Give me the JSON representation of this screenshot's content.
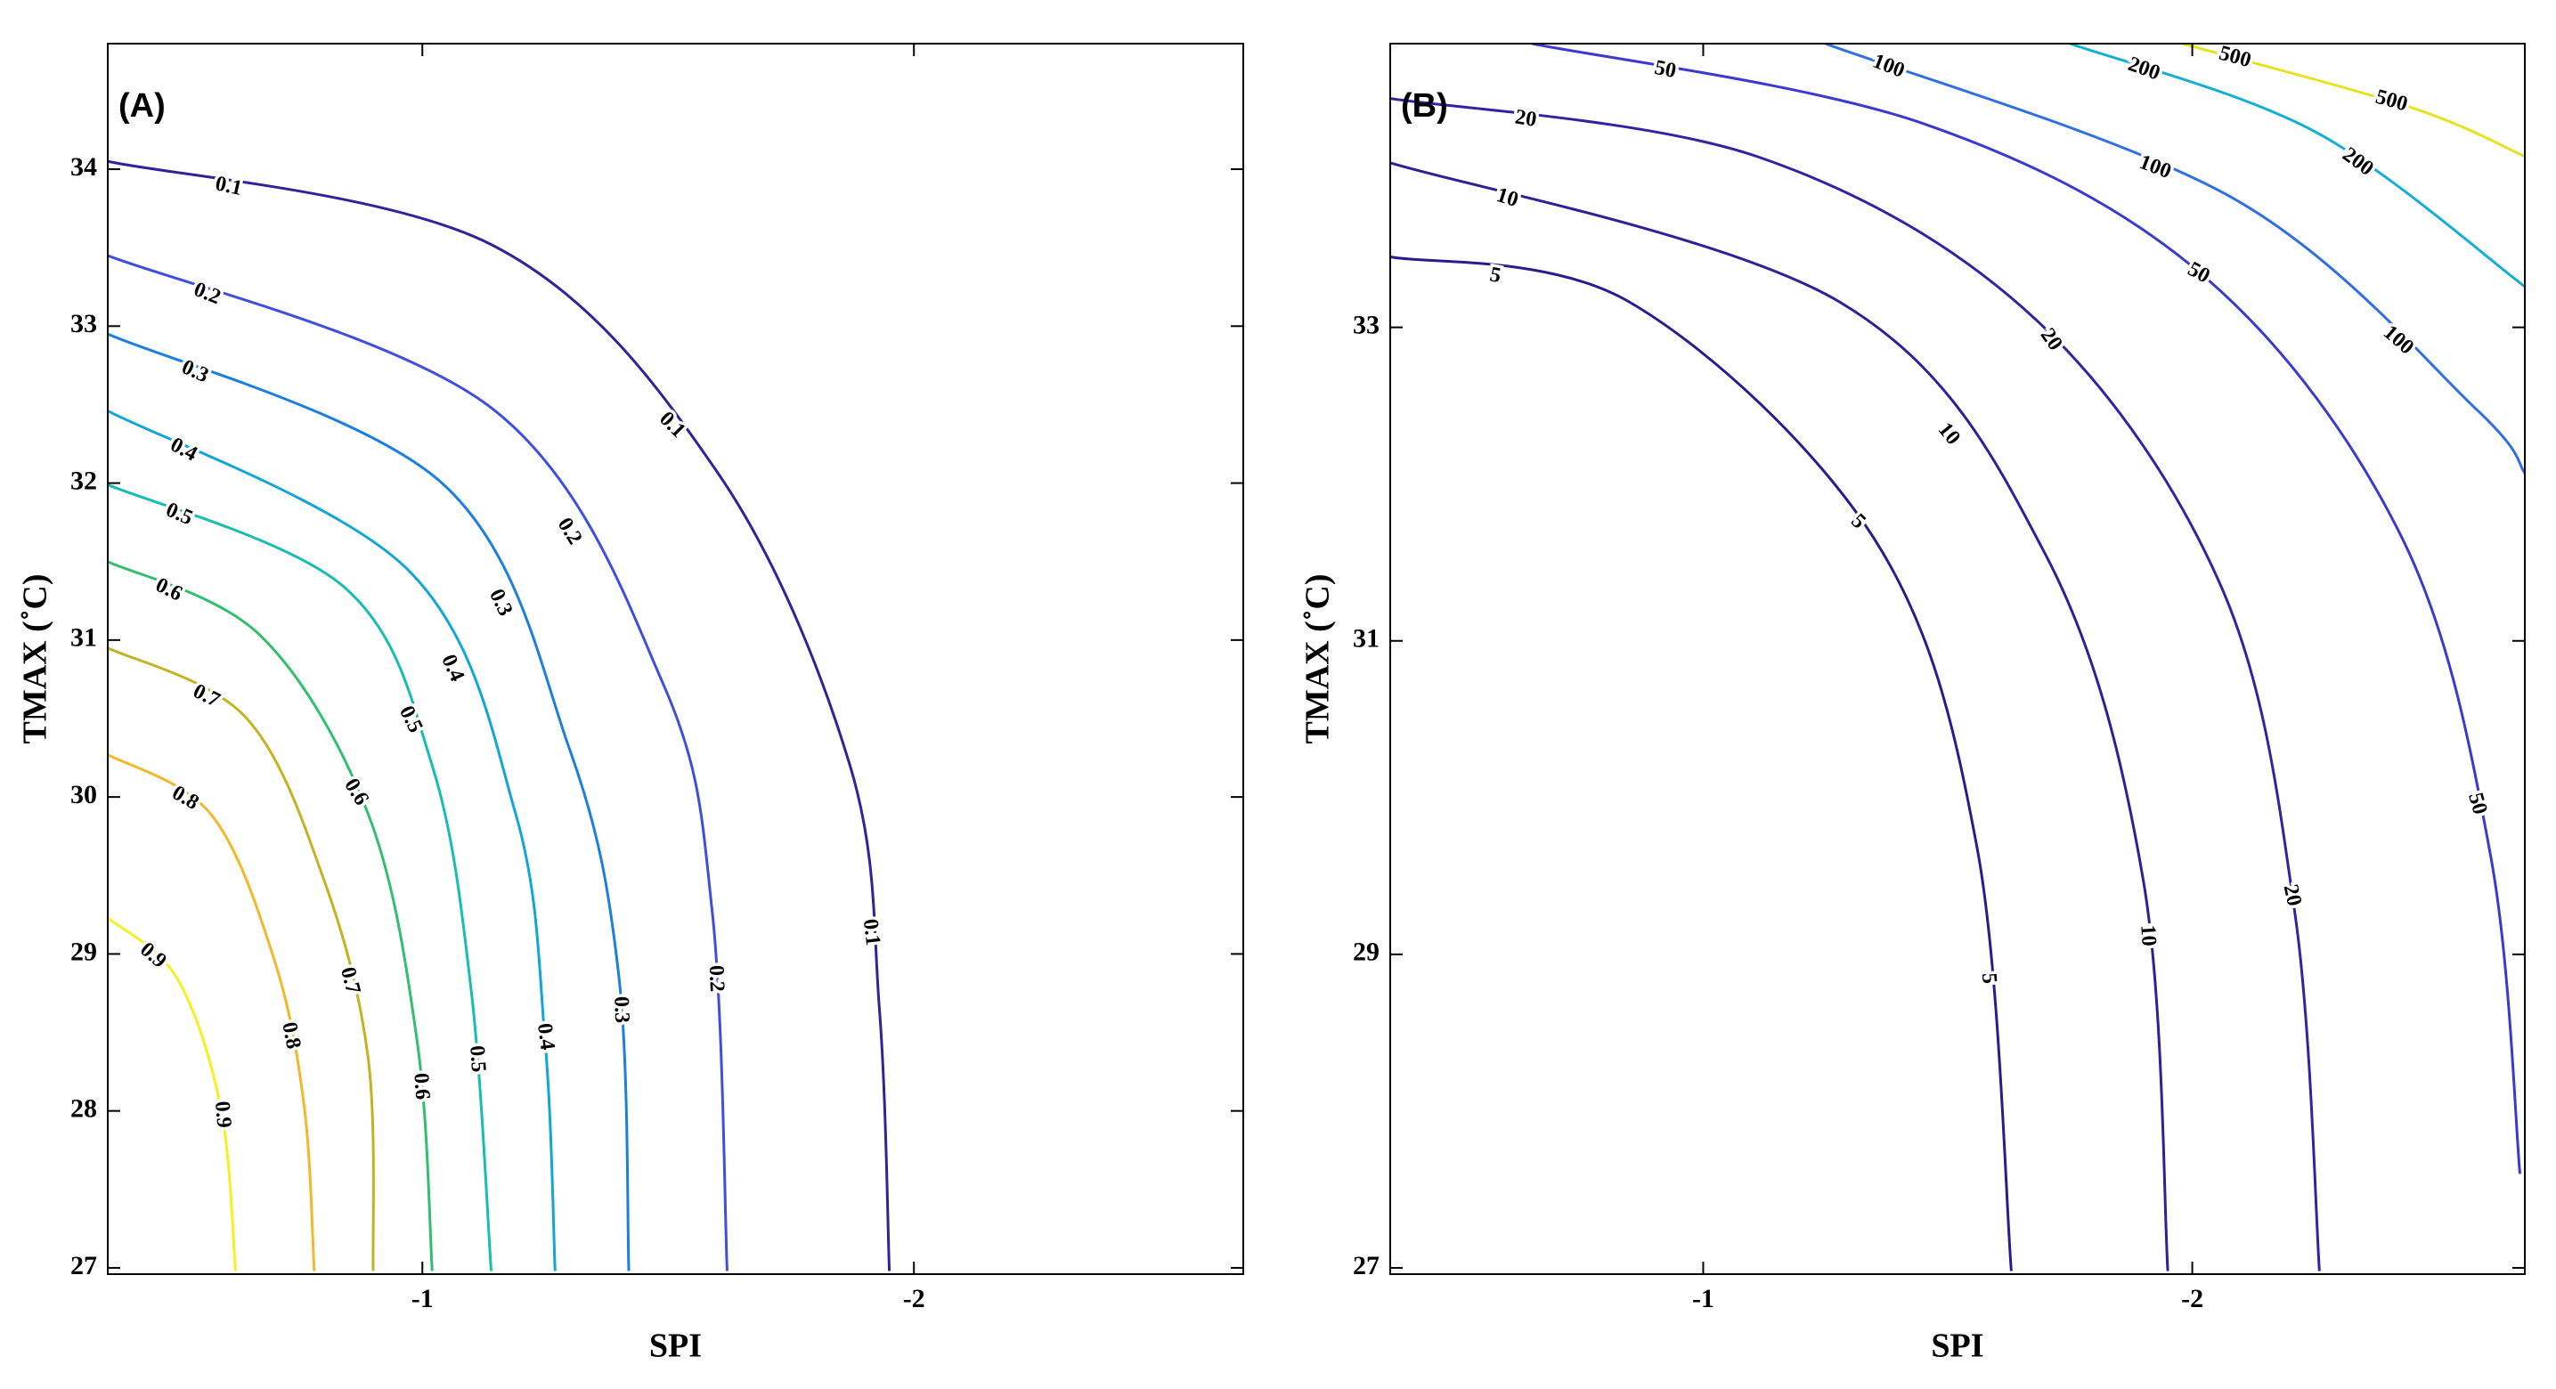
{
  "chart_data": [
    {
      "type": "contour",
      "panel_label": "(A)",
      "x_label": "SPI",
      "y_label": "TMAX (˚C)",
      "xlim": [
        -0.36,
        -2.67
      ],
      "ylim": [
        26.96,
        34.8
      ],
      "xticks": [
        -1,
        -2
      ],
      "yticks": [
        27,
        28,
        29,
        30,
        31,
        32,
        33,
        34
      ],
      "contours": [
        {
          "level": 0.1,
          "color": "#35209a",
          "x": [
            -0.36,
            -1.14,
            -1.6,
            -1.87,
            -1.93,
            -1.95
          ],
          "y": [
            34.05,
            33.52,
            32.07,
            30.2,
            28.64,
            26.98
          ]
        },
        {
          "level": 0.2,
          "color": "#3e4fe0",
          "x": [
            -0.36,
            -1.14,
            -1.49,
            -1.59,
            -1.62
          ],
          "y": [
            33.45,
            32.48,
            30.72,
            29.26,
            26.98
          ]
        },
        {
          "level": 0.3,
          "color": "#1a7fe0",
          "x": [
            -0.36,
            -1.04,
            -1.3,
            -1.4,
            -1.42
          ],
          "y": [
            32.95,
            32.0,
            30.3,
            28.85,
            26.98
          ]
        },
        {
          "level": 0.4,
          "color": "#10a6d6",
          "x": [
            -0.36,
            -0.97,
            -1.19,
            -1.25,
            -1.27
          ],
          "y": [
            32.46,
            31.45,
            29.89,
            28.43,
            26.98
          ]
        },
        {
          "level": 0.5,
          "color": "#17bdb0",
          "x": [
            -0.36,
            -0.84,
            -1.02,
            -1.1,
            -1.14
          ],
          "y": [
            31.99,
            31.34,
            30.2,
            28.75,
            26.98
          ]
        },
        {
          "level": 0.6,
          "color": "#2fbf6f",
          "x": [
            -0.36,
            -0.67,
            -0.89,
            -0.99,
            -1.02
          ],
          "y": [
            31.5,
            31.03,
            29.89,
            28.43,
            26.98
          ]
        },
        {
          "level": 0.7,
          "color": "#c2b420",
          "x": [
            -0.36,
            -0.64,
            -0.8,
            -0.89,
            -0.9
          ],
          "y": [
            30.95,
            30.51,
            29.47,
            28.33,
            26.98
          ]
        },
        {
          "level": 0.8,
          "color": "#f0b82a",
          "x": [
            -0.36,
            -0.57,
            -0.7,
            -0.76,
            -0.78
          ],
          "y": [
            30.27,
            29.89,
            28.95,
            28.02,
            26.98
          ]
        },
        {
          "level": 0.9,
          "color": "#f5f021",
          "x": [
            -0.36,
            -0.5,
            -0.59,
            -0.62
          ],
          "y": [
            29.23,
            28.85,
            28.02,
            26.98
          ]
        }
      ]
    },
    {
      "type": "contour",
      "panel_label": "(B)",
      "x_label": "SPI",
      "y_label": "TMAX (˚C)",
      "xlim": [
        -0.36,
        -2.68
      ],
      "ylim": [
        26.96,
        34.81
      ],
      "xticks": [
        -1,
        -2
      ],
      "yticks": [
        27,
        29,
        31,
        33
      ],
      "contours": [
        {
          "level": 5,
          "color": "#2d1a8f",
          "x": [
            -0.36,
            -0.85,
            -1.35,
            -1.56,
            -1.63
          ],
          "y": [
            33.45,
            33.16,
            31.65,
            29.68,
            26.98
          ]
        },
        {
          "level": 10,
          "color": "#311e99",
          "x": [
            -0.36,
            -1.28,
            -1.7,
            -1.9,
            -1.95
          ],
          "y": [
            34.05,
            33.16,
            31.55,
            29.47,
            26.98
          ]
        },
        {
          "level": 20,
          "color": "#3521a4",
          "x": [
            -0.36,
            -1.11,
            -1.68,
            -2.06,
            -2.21,
            -2.26
          ],
          "y": [
            34.46,
            34.09,
            33.05,
            31.34,
            29.26,
            26.98
          ]
        },
        {
          "level": 50,
          "color": "#3a3ad0",
          "x": [
            -0.65,
            -1.45,
            -2.03,
            -2.43,
            -2.61,
            -2.67
          ],
          "y": [
            34.81,
            34.3,
            33.31,
            31.65,
            29.63,
            27.6
          ]
        },
        {
          "level": 100,
          "color": "#2f6fe4",
          "x": [
            -1.25,
            -2.08,
            -2.58,
            -2.68
          ],
          "y": [
            34.81,
            33.83,
            32.48,
            32.07
          ]
        },
        {
          "level": 200,
          "color": "#14b0d4",
          "x": [
            -1.75,
            -2.25,
            -2.68
          ],
          "y": [
            34.81,
            34.25,
            33.26
          ]
        },
        {
          "level": 500,
          "color": "#e6e21e",
          "x": [
            -1.98,
            -2.45,
            -2.68
          ],
          "y": [
            34.81,
            34.4,
            34.09
          ]
        }
      ]
    }
  ]
}
